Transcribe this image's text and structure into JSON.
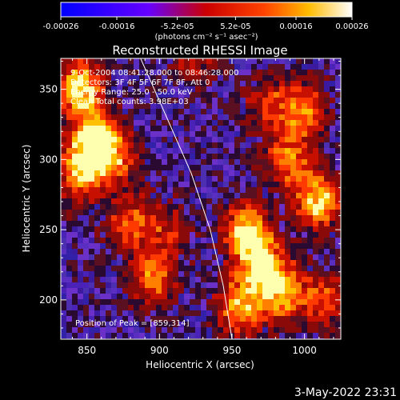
{
  "colorbar": {
    "tick_labels": [
      "-0.00026",
      "-0.00016",
      "-5.2e-05",
      "5.2e-05",
      "0.00016",
      "0.00026"
    ],
    "tick_values": [
      -0.00026,
      -0.00016,
      -5.2e-05,
      5.2e-05,
      0.00016,
      0.00026
    ],
    "range": [
      -0.00026,
      0.00026
    ],
    "unit_label": "(photons cm⁻² s⁻¹ asec⁻²)",
    "colors": [
      "#0000ff",
      "#8800ff",
      "#ff0000",
      "#ff8800",
      "#ffff00",
      "#ffffff"
    ]
  },
  "chart_data": {
    "type": "heatmap",
    "title": "Reconstructed RHESSI Image",
    "xlabel": "Heliocentric X (arcsec)",
    "ylabel": "Heliocentric Y (arcsec)",
    "xlim": [
      832,
      1025
    ],
    "ylim": [
      172,
      372
    ],
    "x_ticks": [
      850,
      900,
      950,
      1000
    ],
    "y_ticks": [
      200,
      250,
      300,
      350
    ],
    "annotations": [
      "9-Oct-2004 08:41:28.000 to 08:46:28.000",
      "Detectors: 3F 4F 5F 6F 7F 8F, Att 0",
      "Energy Range: 25.0 - 50.0 keV",
      "Clean    Total counts: 3.98E+03"
    ],
    "peak_label": "Position of Peak = [859,314]",
    "peak": [
      859,
      314
    ],
    "limb_points": [
      [
        887,
        372
      ],
      [
        905,
        330
      ],
      [
        922,
        290
      ],
      [
        935,
        250
      ],
      [
        944,
        210
      ],
      [
        950,
        172
      ]
    ],
    "hot_regions": [
      {
        "x": 845,
        "y": 350,
        "w": 1.0
      },
      {
        "x": 855,
        "y": 314,
        "w": 1.0
      },
      {
        "x": 845,
        "y": 290,
        "w": 0.8
      },
      {
        "x": 870,
        "y": 300,
        "w": 0.6
      },
      {
        "x": 880,
        "y": 255,
        "w": 0.6
      },
      {
        "x": 895,
        "y": 215,
        "w": 0.7
      },
      {
        "x": 905,
        "y": 250,
        "w": 0.4
      },
      {
        "x": 960,
        "y": 250,
        "w": 0.9
      },
      {
        "x": 970,
        "y": 225,
        "w": 0.9
      },
      {
        "x": 955,
        "y": 195,
        "w": 0.8
      },
      {
        "x": 985,
        "y": 205,
        "w": 0.8
      },
      {
        "x": 990,
        "y": 300,
        "w": 0.7
      },
      {
        "x": 1010,
        "y": 270,
        "w": 0.9
      },
      {
        "x": 1000,
        "y": 335,
        "w": 0.7
      },
      {
        "x": 975,
        "y": 340,
        "w": 0.5
      },
      {
        "x": 1015,
        "y": 200,
        "w": 0.6
      },
      {
        "x": 925,
        "y": 370,
        "w": 0.4
      }
    ]
  },
  "footer": {
    "timestamp": "3-May-2022 23:31"
  }
}
